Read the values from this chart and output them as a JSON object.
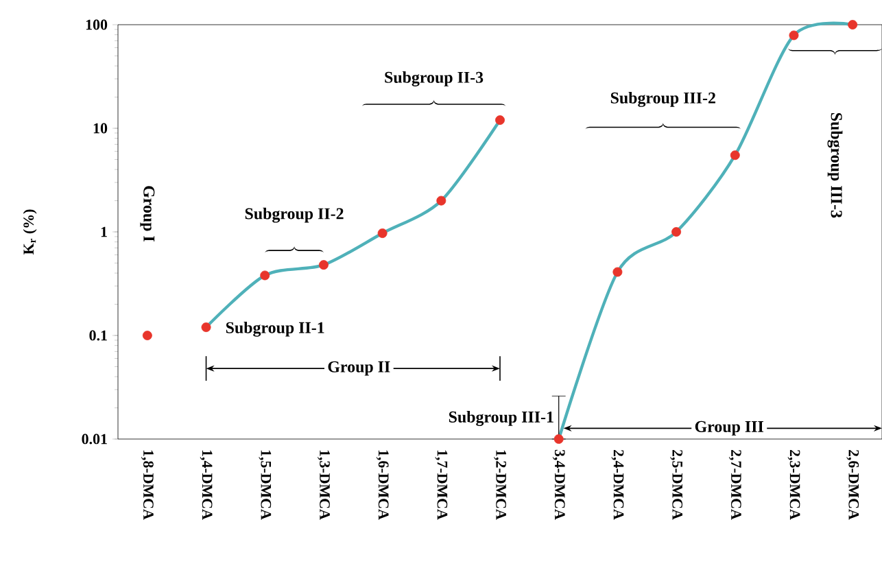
{
  "chart_data": {
    "type": "line",
    "ylabel": "K$_{r}$ (%)",
    "categories": [
      "1,8-DMCA",
      "1,4-DMCA",
      "1,5-DMCA",
      "1,3-DMCA",
      "1,6-DMCA",
      "1,7-DMCA",
      "1,2-DMCA",
      "3,4-DMCA",
      "2,4-DMCA",
      "2,5-DMCA",
      "2,7-DMCA",
      "2,3-DMCA",
      "2,6-DMCA"
    ],
    "log": "y",
    "ylim": [
      0.01,
      100
    ],
    "yticks": [
      0.01,
      0.1,
      1,
      10,
      100
    ],
    "series": [
      {
        "color": "#4fb1b9",
        "marker": "none",
        "values": [
          null,
          0.12,
          0.38,
          0.48,
          0.97,
          2.0,
          12,
          null,
          null,
          null,
          null,
          null,
          null
        ]
      },
      {
        "color": "#4fb1b9",
        "marker": "none",
        "values": [
          null,
          null,
          null,
          null,
          null,
          null,
          null,
          0.01,
          0.41,
          1.0,
          5.5,
          79,
          100
        ]
      },
      {
        "type": "scatter",
        "color": "#e8352b",
        "marker": "circle",
        "values": [
          0.1,
          0.12,
          0.38,
          0.48,
          0.97,
          2.0,
          12,
          0.01,
          0.41,
          1.0,
          5.5,
          79,
          100
        ],
        "errors": [
          null,
          null,
          null,
          null,
          null,
          null,
          null,
          [
            0.01,
            0.026
          ],
          null,
          null,
          null,
          null,
          null
        ]
      }
    ],
    "annotations": [
      "Group I",
      "Subgroup II-1",
      "Subgroup II-2",
      "Subgroup II-3",
      "Group II",
      "Subgroup III-1",
      "Subgroup III-2",
      "Subgroup III-3",
      {
        "text": "Group III",
        "x": "3,4-DMCA",
        "y": 0.0127
      }
    ]
  }
}
